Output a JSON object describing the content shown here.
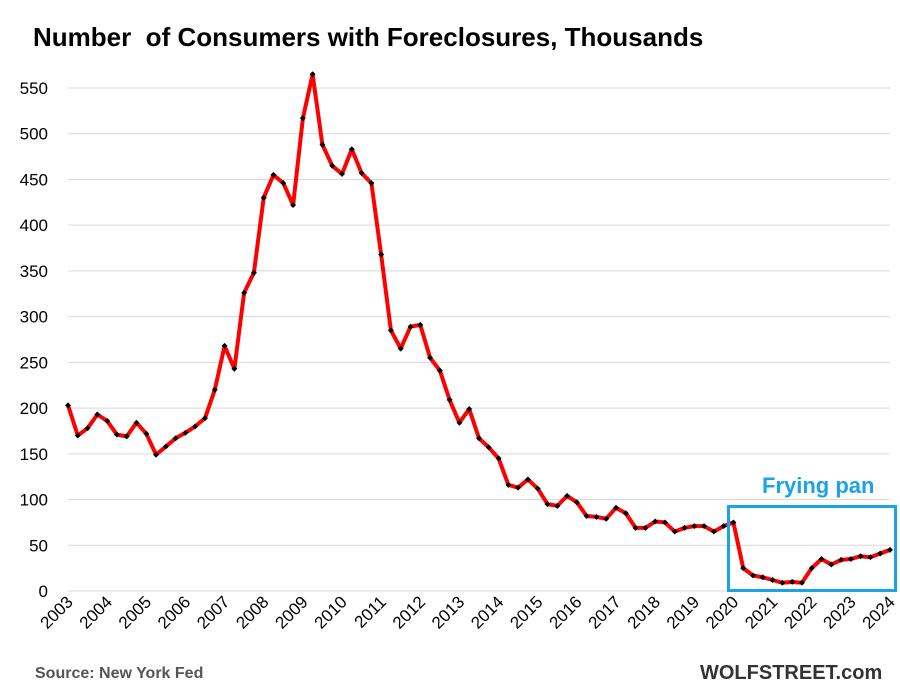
{
  "title": "Number  of Consumers with Foreclosures, Thousands",
  "source": "Source: New York Fed",
  "brand": "WOLFSTREET.com",
  "annotation": {
    "label": "Frying pan",
    "color": "#1aa3e6"
  },
  "colors": {
    "line": "#ff0000",
    "marker": "#000000",
    "grid": "#d9d9d9"
  },
  "chart_data": {
    "type": "line",
    "title": "Number  of Consumers with Foreclosures, Thousands",
    "xlabel": "",
    "ylabel": "",
    "ylim": [
      0,
      550
    ],
    "yticks": [
      0,
      50,
      100,
      150,
      200,
      250,
      300,
      350,
      400,
      450,
      500,
      550
    ],
    "xticks": [
      "2003",
      "2004",
      "2005",
      "2006",
      "2007",
      "2008",
      "2009",
      "2010",
      "2011",
      "2012",
      "2013",
      "2014",
      "2015",
      "2016",
      "2017",
      "2018",
      "2019",
      "2020",
      "2021",
      "2022",
      "2023",
      "2024"
    ],
    "grid": true,
    "legend": "none",
    "series": [
      {
        "x_start": 2003.0,
        "x_step": 0.25,
        "values": [
          203,
          170,
          178,
          193,
          186,
          171,
          169,
          184,
          172,
          149,
          158,
          167,
          173,
          180,
          189,
          220,
          268,
          243,
          326,
          348,
          430,
          455,
          446,
          422,
          517,
          565,
          488,
          465,
          456,
          483,
          457,
          446,
          368,
          285,
          265,
          289,
          291,
          255,
          241,
          209,
          184,
          199,
          167,
          157,
          145,
          116,
          113,
          122,
          112,
          95,
          93,
          104,
          97,
          82,
          81,
          79,
          91,
          85,
          69,
          69,
          76,
          75,
          65,
          69,
          71,
          71,
          65,
          71,
          75,
          25,
          17,
          15,
          12,
          9,
          10,
          9,
          25,
          35,
          29,
          34,
          35,
          38,
          37,
          41,
          45
        ]
      }
    ]
  }
}
